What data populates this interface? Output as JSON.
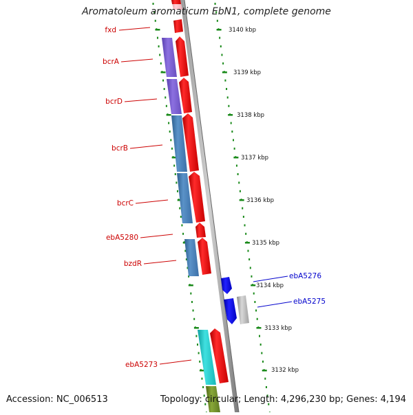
{
  "title": "Aromatoleum aromaticum EbN1, complete genome",
  "footer": {
    "accession": "Accession: NC_006513",
    "topology": "Topology: circular; Length: 4,296,230 bp; Genes: 4,194"
  },
  "colors": {
    "forward_cds": "#ff0000",
    "reverse_cds": "#0000ff",
    "gray_feature": "#b8b8b8",
    "tick": "#1a8a1a",
    "label_forward": "#cc0000",
    "label_reverse": "#0000cc",
    "purple_feature": "#7b5fd0",
    "steelblue_feature": "#4a80b8",
    "cyan_feature": "#20c8c8",
    "olive_feature": "#6e8a2a",
    "pink_feature": "#f4b8c0"
  },
  "scale_labels": [
    "3140 kbp",
    "3139 kbp",
    "3138 kbp",
    "3137 kbp",
    "3136 kbp",
    "3135 kbp",
    "3134 kbp",
    "3133 kbp",
    "3132 kbp"
  ],
  "gene_labels": {
    "fxd": "fxd",
    "bcrA": "bcrA",
    "bcrD": "bcrD",
    "bcrB": "bcrB",
    "bcrC": "bcrC",
    "ebA5280": "ebA5280",
    "bzdR": "bzdR",
    "ebA5276": "ebA5276",
    "ebA5275": "ebA5275",
    "ebA5273": "ebA5273"
  }
}
